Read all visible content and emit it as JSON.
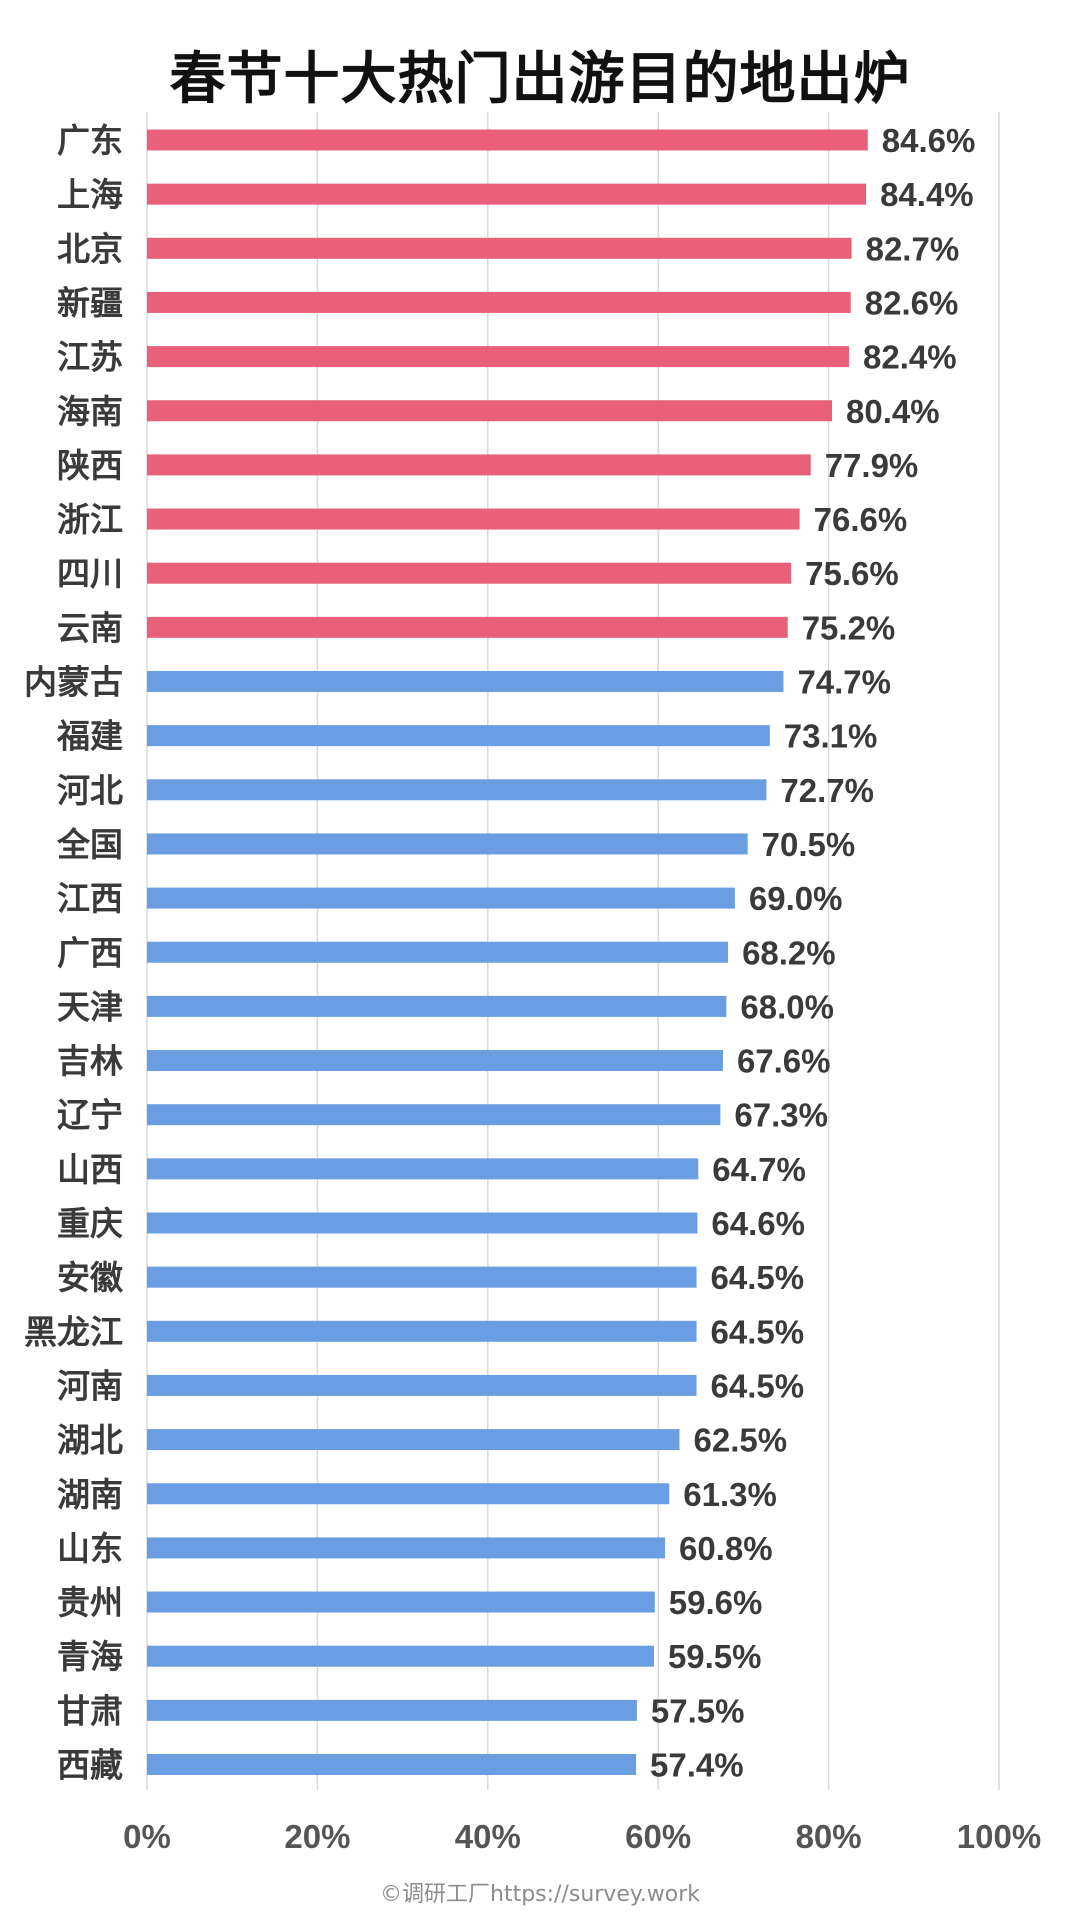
{
  "chart_data": {
    "type": "bar",
    "orientation": "horizontal",
    "title": "春节十大热门出游目的地出炉",
    "categories": [
      "广东",
      "上海",
      "北京",
      "新疆",
      "江苏",
      "海南",
      "陕西",
      "浙江",
      "四川",
      "云南",
      "内蒙古",
      "福建",
      "河北",
      "全国",
      "江西",
      "广西",
      "天津",
      "吉林",
      "辽宁",
      "山西",
      "重庆",
      "安徽",
      "黑龙江",
      "河南",
      "湖北",
      "湖南",
      "山东",
      "贵州",
      "青海",
      "甘肃",
      "西藏"
    ],
    "values": [
      84.6,
      84.4,
      82.7,
      82.6,
      82.4,
      80.4,
      77.9,
      76.6,
      75.6,
      75.2,
      74.7,
      73.1,
      72.7,
      70.5,
      69.0,
      68.2,
      68.0,
      67.6,
      67.3,
      64.7,
      64.6,
      64.5,
      64.5,
      64.5,
      62.5,
      61.3,
      60.8,
      59.6,
      59.5,
      57.5,
      57.4
    ],
    "value_labels": [
      "84.6%",
      "84.4%",
      "82.7%",
      "82.6%",
      "82.4%",
      "80.4%",
      "77.9%",
      "76.6%",
      "75.6%",
      "75.2%",
      "74.7%",
      "73.1%",
      "72.7%",
      "70.5%",
      "69.0%",
      "68.2%",
      "68.0%",
      "67.6%",
      "67.3%",
      "64.7%",
      "64.6%",
      "64.5%",
      "64.5%",
      "64.5%",
      "62.5%",
      "61.3%",
      "60.8%",
      "59.6%",
      "59.5%",
      "57.5%",
      "57.4%"
    ],
    "highlight_count": 10,
    "colors": {
      "highlight": "#E8607A",
      "normal": "#6A9DE2"
    },
    "xlim": [
      0,
      100
    ],
    "xticks": [
      0,
      20,
      40,
      60,
      80,
      100
    ],
    "xtick_labels": [
      "0%",
      "20%",
      "40%",
      "60%",
      "80%",
      "100%"
    ],
    "grid": true,
    "legend": "none"
  },
  "watermark": "©调研工厂https://survey.work"
}
